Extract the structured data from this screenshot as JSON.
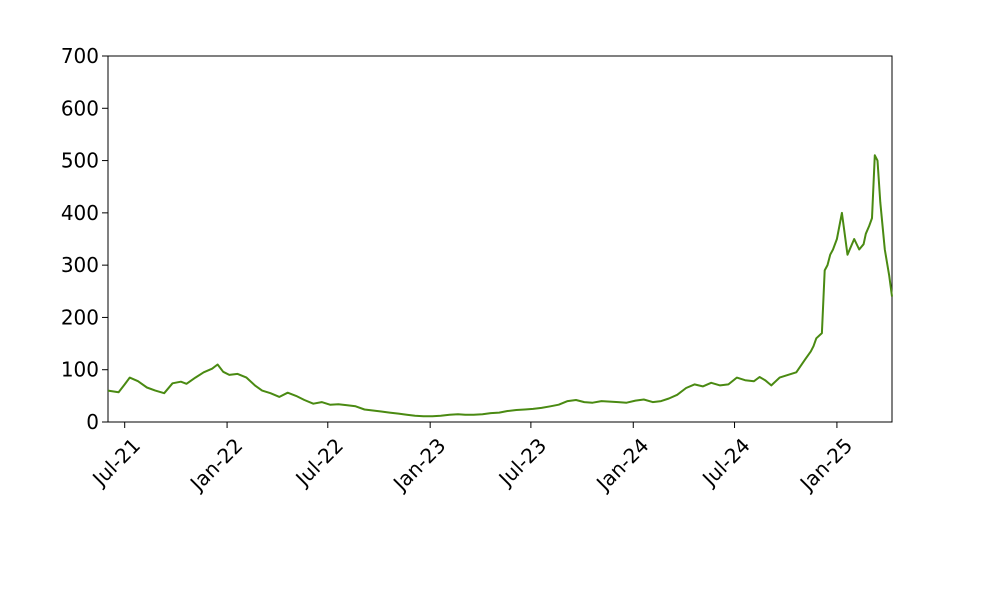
{
  "chart_data": {
    "type": "line",
    "title": "",
    "xlabel": "",
    "ylabel": "",
    "x_range": [
      "2021-06-01",
      "2025-04-10"
    ],
    "ylim": [
      0,
      700
    ],
    "y_ticks": [
      0,
      100,
      200,
      300,
      400,
      500,
      600,
      700
    ],
    "y_tick_labels": [
      "0",
      "100",
      "200",
      "300",
      "400",
      "500",
      "600",
      "700"
    ],
    "x_ticks": [
      "2021-07-01",
      "2022-01-01",
      "2022-07-01",
      "2023-01-01",
      "2023-07-01",
      "2024-01-01",
      "2024-07-01",
      "2025-01-01"
    ],
    "x_tick_labels": [
      "Jul-21",
      "Jan-22",
      "Jul-22",
      "Jan-23",
      "Jul-23",
      "Jan-24",
      "Jul-24",
      "Jan-25"
    ],
    "grid": false,
    "legend": "none",
    "series": [
      {
        "color": "#4a8a12",
        "x": [
          "2021-06-01",
          "2021-06-20",
          "2021-07-01",
          "2021-07-10",
          "2021-07-25",
          "2021-08-10",
          "2021-08-25",
          "2021-09-10",
          "2021-09-25",
          "2021-10-10",
          "2021-10-20",
          "2021-11-05",
          "2021-11-20",
          "2021-12-05",
          "2021-12-15",
          "2021-12-25",
          "2022-01-05",
          "2022-01-20",
          "2022-02-05",
          "2022-02-20",
          "2022-03-05",
          "2022-03-20",
          "2022-04-05",
          "2022-04-20",
          "2022-05-05",
          "2022-05-20",
          "2022-06-05",
          "2022-06-20",
          "2022-07-05",
          "2022-07-20",
          "2022-08-05",
          "2022-08-20",
          "2022-09-05",
          "2022-09-20",
          "2022-10-05",
          "2022-10-20",
          "2022-11-05",
          "2022-11-20",
          "2022-12-05",
          "2022-12-20",
          "2023-01-05",
          "2023-01-20",
          "2023-02-05",
          "2023-02-20",
          "2023-03-05",
          "2023-03-20",
          "2023-04-05",
          "2023-04-20",
          "2023-05-05",
          "2023-05-20",
          "2023-06-05",
          "2023-06-20",
          "2023-07-05",
          "2023-07-20",
          "2023-08-05",
          "2023-08-20",
          "2023-09-05",
          "2023-09-20",
          "2023-10-05",
          "2023-10-20",
          "2023-11-05",
          "2023-11-20",
          "2023-12-05",
          "2023-12-20",
          "2024-01-05",
          "2024-01-20",
          "2024-02-05",
          "2024-02-20",
          "2024-03-05",
          "2024-03-20",
          "2024-04-05",
          "2024-04-20",
          "2024-05-05",
          "2024-05-20",
          "2024-06-05",
          "2024-06-20",
          "2024-07-05",
          "2024-07-20",
          "2024-08-05",
          "2024-08-15",
          "2024-08-25",
          "2024-09-05",
          "2024-09-20",
          "2024-10-05",
          "2024-10-20",
          "2024-11-05",
          "2024-11-15",
          "2024-11-20",
          "2024-11-25",
          "2024-12-05",
          "2024-12-10",
          "2024-12-15",
          "2024-12-20",
          "2024-12-25",
          "2025-01-01",
          "2025-01-10",
          "2025-01-20",
          "2025-02-01",
          "2025-02-10",
          "2025-02-18",
          "2025-02-22",
          "2025-02-28",
          "2025-03-05",
          "2025-03-10",
          "2025-03-15",
          "2025-03-20",
          "2025-03-28",
          "2025-04-05",
          "2025-04-10"
        ],
        "y": [
          60,
          57,
          72,
          85,
          78,
          66,
          60,
          55,
          74,
          77,
          73,
          85,
          95,
          102,
          110,
          96,
          90,
          92,
          85,
          70,
          60,
          55,
          48,
          56,
          50,
          42,
          35,
          38,
          33,
          34,
          32,
          30,
          24,
          22,
          20,
          18,
          16,
          14,
          12,
          11,
          11,
          12,
          14,
          15,
          14,
          14,
          15,
          17,
          18,
          21,
          23,
          24,
          25,
          27,
          30,
          33,
          40,
          42,
          38,
          37,
          40,
          39,
          38,
          37,
          41,
          43,
          38,
          40,
          45,
          52,
          65,
          72,
          68,
          75,
          70,
          72,
          85,
          80,
          78,
          86,
          80,
          70,
          85,
          90,
          95,
          120,
          135,
          145,
          160,
          170,
          290,
          300,
          320,
          330,
          350,
          400,
          320,
          350,
          330,
          340,
          360,
          375,
          390,
          510,
          500,
          420,
          330,
          280,
          240
        ]
      }
    ]
  }
}
